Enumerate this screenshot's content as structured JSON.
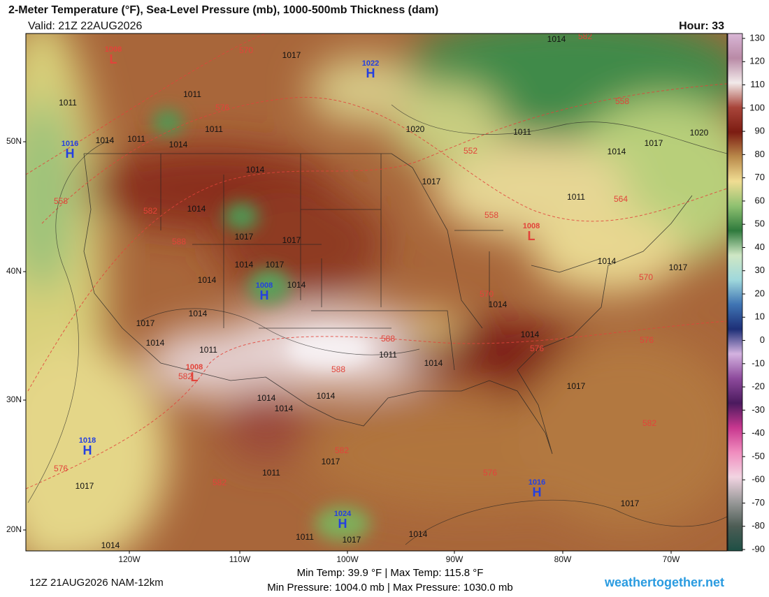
{
  "header": {
    "title": "2-Meter Temperature (°F), Sea-Level Pressure (mb), 1000-500mb Thickness (dam)",
    "valid": "Valid: 21Z 22AUG2026",
    "hour": "Hour: 33"
  },
  "map": {
    "lat_labels": [
      "50N",
      "40N",
      "30N",
      "20N"
    ],
    "lon_labels": [
      "120W",
      "110W",
      "100W",
      "90W",
      "80W",
      "70W"
    ],
    "isobar_labels": [
      1011,
      1011,
      1011,
      1014,
      1014,
      1011,
      1017,
      1014,
      1020,
      1011,
      1017,
      1020,
      1014,
      1017,
      1011,
      1014,
      1014,
      1017,
      1017,
      1014,
      1017,
      1014,
      1014,
      1014,
      1017,
      1014,
      1011,
      1011,
      1014,
      1014,
      1014,
      1014,
      1017,
      1017,
      1014,
      1014,
      1014,
      1017,
      1011,
      1017,
      1014,
      1014,
      1017,
      1011,
      1017
    ],
    "thickness_labels": [
      570,
      582,
      576,
      558,
      552,
      558,
      582,
      588,
      564,
      558,
      570,
      570,
      576,
      576,
      588,
      588,
      582,
      576,
      582,
      576,
      582,
      582
    ],
    "pressure_centers": [
      {
        "kind": "L",
        "value": 1008
      },
      {
        "kind": "H",
        "value": 1022
      },
      {
        "kind": "H",
        "value": 1016
      },
      {
        "kind": "L",
        "value": 1008
      },
      {
        "kind": "H",
        "value": 1008
      },
      {
        "kind": "L",
        "value": 1008
      },
      {
        "kind": "H",
        "value": 1018
      },
      {
        "kind": "H",
        "value": 1016
      },
      {
        "kind": "H",
        "value": 1024
      }
    ]
  },
  "colorbar": {
    "ticks": [
      130,
      120,
      110,
      100,
      90,
      80,
      70,
      60,
      50,
      40,
      30,
      20,
      10,
      0,
      -10,
      -20,
      -30,
      -40,
      -50,
      -60,
      -70,
      -80,
      -90
    ],
    "colors": [
      "#d9b6d6",
      "#b98aa6",
      "#f2eaea",
      "#a8453a",
      "#7c1c12",
      "#b9894a",
      "#f0dd93",
      "#8fc171",
      "#2f7a3d",
      "#cfe7c4",
      "#9fd8dc",
      "#3f74b3",
      "#1d2f77",
      "#d3b2e0",
      "#8d4a9c",
      "#4b1a5e",
      "#c8378f",
      "#f08dbe",
      "#f2d4e2",
      "#9a9a9a",
      "#4d5d55",
      "#1e4f45"
    ]
  },
  "footer": {
    "run": "12Z 21AUG2026 NAM-12km",
    "temps": "Min Temp:  39.9 °F | Max Temp: 115.8 °F",
    "pressures": "Min Pressure: 1004.0 mb | Max Pressure: 1030.0 mb",
    "site": "weathertogether.net"
  }
}
